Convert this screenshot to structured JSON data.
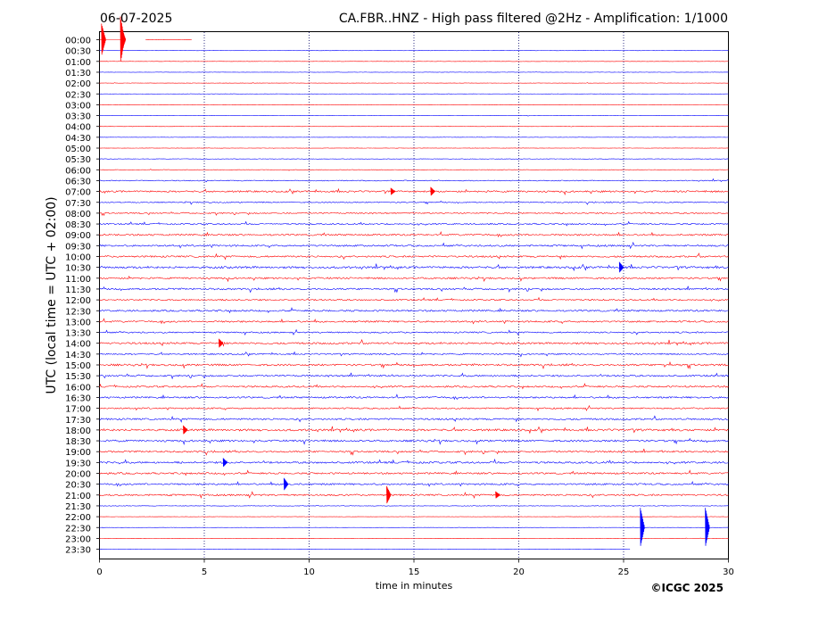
{
  "header": {
    "date": "06-07-2025",
    "title": "CA.FBR..HNZ - High pass filtered @2Hz - Amplification: 1/1000"
  },
  "footer": {
    "copyright": "©ICGC 2025"
  },
  "chart_data": {
    "type": "line",
    "title": "CA.FBR..HNZ - High pass filtered @2Hz - Amplification: 1/1000",
    "xlabel": "time in minutes",
    "ylabel": "UTC (local time = UTC + 02:00)",
    "xlim": [
      0,
      30
    ],
    "xticks": [
      0,
      5,
      10,
      15,
      20,
      25,
      30
    ],
    "grid": "vertical dotted at 5-minute intervals",
    "row_labels": [
      "00:00",
      "00:30",
      "01:00",
      "01:30",
      "02:00",
      "02:30",
      "03:00",
      "03:30",
      "04:00",
      "04:30",
      "05:00",
      "05:30",
      "06:00",
      "06:30",
      "07:00",
      "07:30",
      "08:00",
      "08:30",
      "09:00",
      "09:30",
      "10:00",
      "10:30",
      "11:00",
      "11:30",
      "12:00",
      "12:30",
      "13:00",
      "13:30",
      "14:00",
      "14:30",
      "15:00",
      "15:30",
      "16:00",
      "16:30",
      "17:00",
      "17:30",
      "18:00",
      "18:30",
      "19:00",
      "19:30",
      "20:00",
      "20:30",
      "21:00",
      "21:30",
      "22:00",
      "22:30",
      "23:00",
      "23:30"
    ],
    "row_colors": [
      "#ff0000",
      "#0000ff"
    ],
    "row_noise": [
      0.3,
      0.3,
      0.3,
      0.3,
      0.3,
      0.3,
      0.3,
      0.3,
      0.3,
      0.3,
      0.3,
      0.5,
      0.5,
      1.0,
      1.8,
      1.2,
      1.3,
      1.5,
      1.8,
      1.8,
      1.8,
      2.2,
      1.8,
      1.8,
      1.5,
      1.8,
      1.8,
      1.5,
      2.0,
      1.5,
      2.0,
      1.8,
      1.8,
      1.8,
      1.5,
      1.8,
      2.2,
      2.0,
      1.8,
      2.0,
      1.8,
      1.8,
      1.8,
      0.6,
      0.3,
      0.3,
      0.3,
      0.3
    ],
    "events": [
      {
        "row": "00:00",
        "minute": 0.1,
        "amplitude": 18
      },
      {
        "row": "00:00",
        "minute": 1.0,
        "amplitude": 26
      },
      {
        "row": "00:00",
        "minute": 1.05,
        "amplitude": 14
      },
      {
        "row": "07:00",
        "minute": 15.8,
        "amplitude": 5
      },
      {
        "row": "07:00",
        "minute": 13.9,
        "amplitude": 4
      },
      {
        "row": "10:30",
        "minute": 24.8,
        "amplitude": 6
      },
      {
        "row": "14:00",
        "minute": 5.7,
        "amplitude": 5
      },
      {
        "row": "18:00",
        "minute": 4.0,
        "amplitude": 5
      },
      {
        "row": "19:30",
        "minute": 5.9,
        "amplitude": 5
      },
      {
        "row": "20:30",
        "minute": 8.8,
        "amplitude": 7
      },
      {
        "row": "21:00",
        "minute": 13.7,
        "amplitude": 10
      },
      {
        "row": "21:00",
        "minute": 18.9,
        "amplitude": 4
      },
      {
        "row": "22:30",
        "minute": 25.8,
        "amplitude": 22
      },
      {
        "row": "22:30",
        "minute": 28.9,
        "amplitude": 22
      }
    ],
    "partial_rows": [
      {
        "row": "00:00",
        "from": 2.2,
        "to": 4.4
      },
      {
        "row": "23:30",
        "from": 0,
        "to": 25.3
      }
    ]
  }
}
